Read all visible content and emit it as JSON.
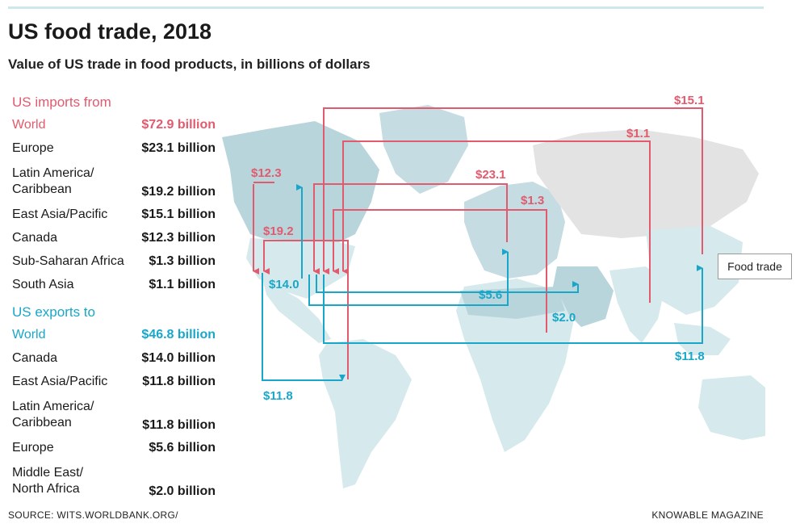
{
  "title": "US food trade, 2018",
  "subtitle": "Value of US trade in food products, in billions of dollars",
  "imports": {
    "heading": "US imports from",
    "world": {
      "label": "World",
      "value": "$72.9 billion"
    },
    "rows": [
      {
        "label": "Europe",
        "value": "$23.1 billion"
      },
      {
        "label": "Latin America/ Caribbean",
        "value": "$19.2 billion"
      },
      {
        "label": "East Asia/Pacific",
        "value": "$15.1 billion"
      },
      {
        "label": "Canada",
        "value": "$12.3 billion"
      },
      {
        "label": "Sub-Saharan Africa",
        "value": "$1.3 billion"
      },
      {
        "label": "South Asia",
        "value": "$1.1 billion"
      }
    ]
  },
  "exports": {
    "heading": "US exports to",
    "world": {
      "label": "World",
      "value": "$46.8 billion"
    },
    "rows": [
      {
        "label": "Canada",
        "value": "$14.0 billion"
      },
      {
        "label": "East Asia/Pacific",
        "value": "$11.8 billion"
      },
      {
        "label": "Latin America/ Caribbean",
        "value": "$11.8 billion"
      },
      {
        "label": "Europe",
        "value": "$5.6 billion"
      },
      {
        "label": "Middle East/ North Africa",
        "value": "$2.0 billion"
      }
    ]
  },
  "map_labels": {
    "imp_east_asia": "$15.1",
    "imp_south_asia": "$1.1",
    "imp_europe": "$23.1",
    "imp_africa": "$1.3",
    "imp_canada": "$12.3",
    "imp_latam": "$19.2",
    "exp_canada": "$14.0",
    "exp_europe": "$5.6",
    "exp_mena": "$2.0",
    "exp_east_asia": "$11.8",
    "exp_latam": "$11.8"
  },
  "tooltip": "Food trade",
  "source": "SOURCE: WITS.WORLDBANK.ORG/",
  "brand": "KNOWABLE MAGAZINE",
  "colors": {
    "imports": "#e25a6e",
    "exports": "#19a7c9",
    "land": "#d6e9ec",
    "land_dark": "#b9d5dc",
    "land_grey": "#e3e3e3"
  }
}
